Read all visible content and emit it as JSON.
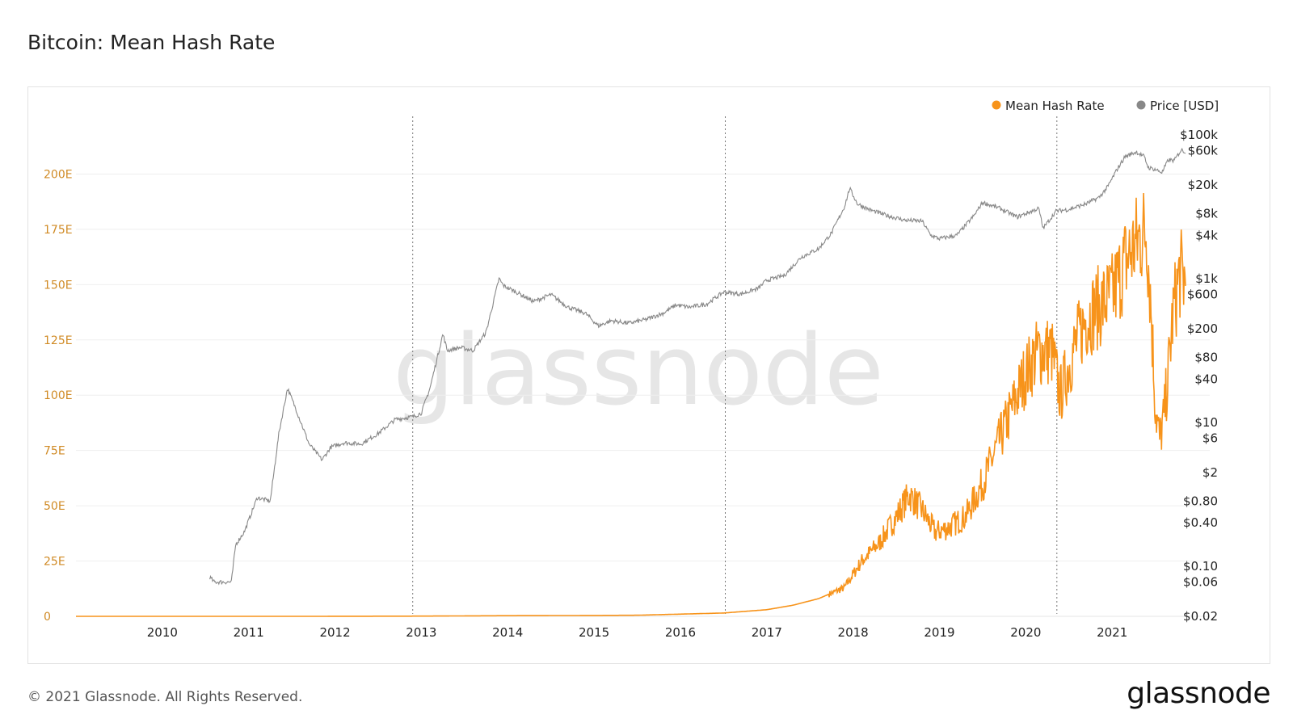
{
  "title": "Bitcoin: Mean Hash Rate",
  "footer": {
    "copyright": "© 2021 Glassnode. All Rights Reserved.",
    "logo": "glassnode"
  },
  "watermark": "glassnode",
  "colors": {
    "hash_rate": "#f7931a",
    "price": "#888888",
    "left_axis_text": "#d08a24",
    "grid": "#efefef"
  },
  "chart_data": {
    "type": "line",
    "title": "Bitcoin: Mean Hash Rate",
    "legend": {
      "placement": "top-right",
      "items": [
        {
          "label": "Mean Hash Rate",
          "color": "#f7931a"
        },
        {
          "label": "Price [USD]",
          "color": "#888888"
        }
      ]
    },
    "x_axis": {
      "range": [
        2009.0,
        2021.85
      ],
      "ticks": [
        "2010",
        "2011",
        "2012",
        "2013",
        "2014",
        "2015",
        "2016",
        "2017",
        "2018",
        "2019",
        "2020",
        "2021"
      ]
    },
    "left_axis": {
      "unit": "EH/s",
      "range": [
        0,
        225
      ],
      "ticks": [
        {
          "value": 0,
          "label": "0"
        },
        {
          "value": 25,
          "label": "25E"
        },
        {
          "value": 50,
          "label": "50E"
        },
        {
          "value": 75,
          "label": "75E"
        },
        {
          "value": 100,
          "label": "100E"
        },
        {
          "value": 125,
          "label": "125E"
        },
        {
          "value": 150,
          "label": "150E"
        },
        {
          "value": 175,
          "label": "175E"
        },
        {
          "value": 200,
          "label": "200E"
        }
      ]
    },
    "right_axis": {
      "scale": "log",
      "range": [
        0.02,
        100000
      ],
      "ticks": [
        {
          "value": 100000,
          "label": "$100k"
        },
        {
          "value": 60000,
          "label": "$60k"
        },
        {
          "value": 20000,
          "label": "$20k"
        },
        {
          "value": 8000,
          "label": "$8k"
        },
        {
          "value": 4000,
          "label": "$4k"
        },
        {
          "value": 1000,
          "label": "$1k"
        },
        {
          "value": 600,
          "label": "$600"
        },
        {
          "value": 200,
          "label": "$200"
        },
        {
          "value": 80,
          "label": "$80"
        },
        {
          "value": 40,
          "label": "$40"
        },
        {
          "value": 10,
          "label": "$10"
        },
        {
          "value": 6,
          "label": "$6"
        },
        {
          "value": 2,
          "label": "$2"
        },
        {
          "value": 0.8,
          "label": "$0.80"
        },
        {
          "value": 0.4,
          "label": "$0.40"
        },
        {
          "value": 0.1,
          "label": "$0.10"
        },
        {
          "value": 0.06,
          "label": "$0.06"
        },
        {
          "value": 0.02,
          "label": "$0.02"
        }
      ]
    },
    "halving_dates": [
      2012.9,
      2016.52,
      2020.36
    ],
    "grid": {
      "horizontal": true,
      "vertical": false
    },
    "series": [
      {
        "name": "Mean Hash Rate",
        "axis": "left",
        "color": "#f7931a",
        "points": [
          [
            2009.0,
            0
          ],
          [
            2011.0,
            0.0
          ],
          [
            2012.0,
            0.02
          ],
          [
            2013.0,
            0.1
          ],
          [
            2014.0,
            0.3
          ],
          [
            2015.0,
            0.4
          ],
          [
            2015.5,
            0.5
          ],
          [
            2016.0,
            1.0
          ],
          [
            2016.5,
            1.5
          ],
          [
            2017.0,
            3
          ],
          [
            2017.3,
            5
          ],
          [
            2017.6,
            8
          ],
          [
            2017.9,
            13
          ],
          [
            2018.1,
            25
          ],
          [
            2018.3,
            33
          ],
          [
            2018.5,
            45
          ],
          [
            2018.65,
            55
          ],
          [
            2018.8,
            48
          ],
          [
            2018.95,
            38
          ],
          [
            2019.1,
            40
          ],
          [
            2019.3,
            45
          ],
          [
            2019.5,
            60
          ],
          [
            2019.7,
            80
          ],
          [
            2019.85,
            95
          ],
          [
            2020.0,
            110
          ],
          [
            2020.15,
            120
          ],
          [
            2020.3,
            120
          ],
          [
            2020.4,
            100
          ],
          [
            2020.55,
            120
          ],
          [
            2020.7,
            135
          ],
          [
            2020.85,
            140
          ],
          [
            2021.0,
            145
          ],
          [
            2021.15,
            160
          ],
          [
            2021.3,
            170
          ],
          [
            2021.4,
            175
          ],
          [
            2021.45,
            140
          ],
          [
            2021.5,
            95
          ],
          [
            2021.55,
            80
          ],
          [
            2021.6,
            90
          ],
          [
            2021.65,
            110
          ],
          [
            2021.7,
            135
          ],
          [
            2021.78,
            155
          ],
          [
            2021.85,
            152
          ]
        ]
      },
      {
        "name": "Price [USD]",
        "axis": "right",
        "color": "#888888",
        "points": [
          [
            2010.55,
            0.07
          ],
          [
            2010.6,
            0.06
          ],
          [
            2010.8,
            0.06
          ],
          [
            2010.85,
            0.2
          ],
          [
            2010.95,
            0.3
          ],
          [
            2011.1,
            0.9
          ],
          [
            2011.25,
            0.8
          ],
          [
            2011.35,
            7
          ],
          [
            2011.45,
            30
          ],
          [
            2011.55,
            15
          ],
          [
            2011.7,
            5
          ],
          [
            2011.85,
            3
          ],
          [
            2011.95,
            4.5
          ],
          [
            2012.1,
            5.2
          ],
          [
            2012.3,
            5
          ],
          [
            2012.5,
            7
          ],
          [
            2012.7,
            11
          ],
          [
            2012.9,
            12
          ],
          [
            2013.0,
            13.5
          ],
          [
            2013.1,
            30
          ],
          [
            2013.25,
            170
          ],
          [
            2013.3,
            100
          ],
          [
            2013.45,
            110
          ],
          [
            2013.6,
            100
          ],
          [
            2013.75,
            180
          ],
          [
            2013.9,
            1000
          ],
          [
            2013.95,
            800
          ],
          [
            2014.1,
            650
          ],
          [
            2014.3,
            480
          ],
          [
            2014.5,
            600
          ],
          [
            2014.7,
            400
          ],
          [
            2014.9,
            330
          ],
          [
            2015.05,
            220
          ],
          [
            2015.2,
            260
          ],
          [
            2015.4,
            240
          ],
          [
            2015.6,
            270
          ],
          [
            2015.8,
            330
          ],
          [
            2015.95,
            430
          ],
          [
            2016.1,
            400
          ],
          [
            2016.3,
            440
          ],
          [
            2016.5,
            650
          ],
          [
            2016.7,
            610
          ],
          [
            2016.9,
            730
          ],
          [
            2017.0,
            950
          ],
          [
            2017.2,
            1100
          ],
          [
            2017.4,
            2000
          ],
          [
            2017.6,
            2600
          ],
          [
            2017.75,
            4300
          ],
          [
            2017.9,
            10000
          ],
          [
            2017.96,
            18000
          ],
          [
            2018.05,
            11000
          ],
          [
            2018.2,
            9000
          ],
          [
            2018.4,
            7500
          ],
          [
            2018.6,
            6500
          ],
          [
            2018.8,
            6300
          ],
          [
            2018.9,
            4000
          ],
          [
            2019.0,
            3600
          ],
          [
            2019.2,
            4000
          ],
          [
            2019.4,
            7500
          ],
          [
            2019.5,
            11500
          ],
          [
            2019.7,
            9500
          ],
          [
            2019.9,
            7200
          ],
          [
            2020.05,
            8500
          ],
          [
            2020.15,
            9500
          ],
          [
            2020.2,
            5000
          ],
          [
            2020.35,
            8700
          ],
          [
            2020.5,
            9200
          ],
          [
            2020.7,
            11000
          ],
          [
            2020.85,
            13500
          ],
          [
            2020.95,
            19000
          ],
          [
            2021.05,
            32000
          ],
          [
            2021.15,
            50000
          ],
          [
            2021.28,
            58000
          ],
          [
            2021.37,
            50000
          ],
          [
            2021.42,
            35000
          ],
          [
            2021.5,
            33000
          ],
          [
            2021.58,
            30000
          ],
          [
            2021.65,
            45000
          ],
          [
            2021.72,
            44000
          ],
          [
            2021.8,
            62000
          ],
          [
            2021.85,
            58000
          ]
        ]
      }
    ]
  }
}
